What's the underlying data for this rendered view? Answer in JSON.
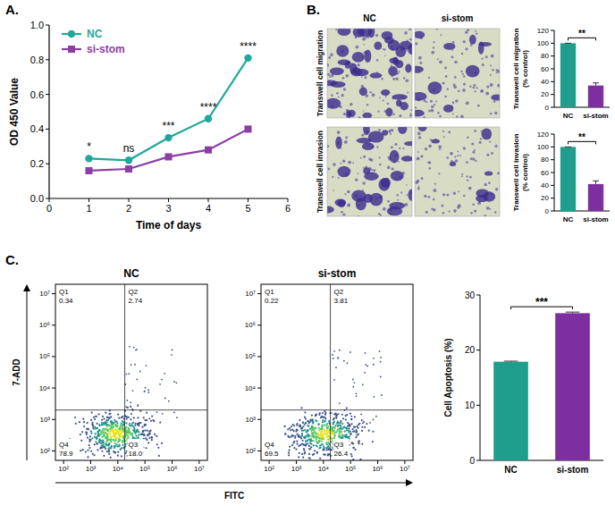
{
  "chart_data": [
    {
      "type": "line",
      "panel": "A.",
      "xlabel": "Time of days",
      "ylabel": "OD 450 Value",
      "x": [
        1,
        2,
        3,
        4,
        5
      ],
      "series": [
        {
          "name": "NC",
          "color": "#1fa899",
          "marker": "circle",
          "values": [
            0.23,
            0.22,
            0.35,
            0.46,
            0.81
          ]
        },
        {
          "name": "si-stom",
          "color": "#8b3fa5",
          "marker": "square",
          "values": [
            0.16,
            0.17,
            0.24,
            0.28,
            0.4
          ]
        }
      ],
      "xlim": [
        0,
        6
      ],
      "xticks": [
        0,
        1,
        2,
        3,
        4,
        5,
        6
      ],
      "ylim": [
        0,
        1
      ],
      "yticks": [
        {
          "value": 0,
          "label": "0.0"
        },
        {
          "value": 0.2,
          "label": "0.2"
        },
        {
          "value": 0.4,
          "label": "0.4"
        },
        {
          "value": 0.6,
          "label": "0.6"
        },
        {
          "value": 0.8,
          "label": "0.8"
        },
        {
          "value": 1,
          "label": "1.0"
        }
      ],
      "legend": "upper left",
      "annotations": [
        {
          "x": 1,
          "text": "*"
        },
        {
          "x": 2,
          "text": "ns"
        },
        {
          "x": 3,
          "text": "***"
        },
        {
          "x": 4,
          "text": "****"
        },
        {
          "x": 5,
          "text": "****"
        }
      ]
    },
    {
      "type": "bar",
      "panel": "B.",
      "images": {
        "columns": [
          "NC",
          "si-stom"
        ],
        "rows": [
          "Transwell cell migration",
          "Transwell cell invasion"
        ]
      },
      "ylabel": "Transwell cell migration (% control)",
      "categories": [
        "NC",
        "si-stom"
      ],
      "values": [
        100,
        34
      ],
      "errors": [
        0,
        4
      ],
      "colors": [
        "#1f9e8e",
        "#7e2f9f"
      ],
      "ylim": [
        0,
        120
      ],
      "yticks": [
        0,
        20,
        40,
        60,
        80,
        100,
        120
      ],
      "annotation": "**"
    },
    {
      "type": "bar",
      "ylabel": "Transwell cell invasion (% control)",
      "categories": [
        "NC",
        "si-stom"
      ],
      "values": [
        100,
        42
      ],
      "errors": [
        0,
        5
      ],
      "colors": [
        "#1f9e8e",
        "#7e2f9f"
      ],
      "ylim": [
        0,
        120
      ],
      "yticks": [
        0,
        20,
        40,
        60,
        80,
        100,
        120
      ],
      "annotation": "**"
    },
    {
      "type": "flow_cytometry",
      "panel": "C.",
      "title": "NC",
      "xlabel": "FITC",
      "ylabel": "7-ADD",
      "log": true,
      "xlim": [
        50,
        20000000
      ],
      "xticks": [
        {
          "value": 100,
          "label": "10²"
        },
        {
          "value": 1000,
          "label": "10³"
        },
        {
          "value": 10000,
          "label": "10⁴"
        },
        {
          "value": 100000,
          "label": "10⁵"
        },
        {
          "value": 1000000,
          "label": "10⁶"
        },
        {
          "value": 10000000,
          "label": "10⁷"
        }
      ],
      "ylim": [
        50,
        20000000
      ],
      "yticks": [
        {
          "value": 100,
          "label": "10²"
        },
        {
          "value": 1000,
          "label": "10³"
        },
        {
          "value": 10000,
          "label": "10⁴"
        },
        {
          "value": 100000,
          "label": "10⁵"
        },
        {
          "value": 1000000,
          "label": "10⁶"
        },
        {
          "value": 10000000,
          "label": "10⁷"
        }
      ],
      "gates": {
        "x": 18000,
        "y": 2000
      },
      "quadrants": {
        "names": [
          "Q1",
          "Q2",
          "Q3",
          "Q4"
        ],
        "values": [
          0.34,
          2.74,
          18,
          78.9
        ],
        "value_labels": [
          "0.34",
          "2.74",
          "18.0",
          "78.9"
        ]
      }
    },
    {
      "type": "flow_cytometry",
      "title": "si-stom",
      "log": true,
      "xlim": [
        50,
        20000000
      ],
      "xticks": [
        {
          "value": 100,
          "label": "10²"
        },
        {
          "value": 1000,
          "label": "10³"
        },
        {
          "value": 10000,
          "label": "10⁴"
        },
        {
          "value": 100000,
          "label": "10⁵"
        },
        {
          "value": 1000000,
          "label": "10⁶"
        },
        {
          "value": 10000000,
          "label": "10⁷"
        }
      ],
      "ylim": [
        50,
        20000000
      ],
      "yticks": [
        {
          "value": 100,
          "label": "10²"
        },
        {
          "value": 1000,
          "label": "10³"
        },
        {
          "value": 10000,
          "label": "10⁴"
        },
        {
          "value": 100000,
          "label": "10⁵"
        },
        {
          "value": 1000000,
          "label": "10⁶"
        },
        {
          "value": 10000000,
          "label": "10⁷"
        }
      ],
      "gates": {
        "x": 18000,
        "y": 2000
      },
      "quadrants": {
        "names": [
          "Q1",
          "Q2",
          "Q3",
          "Q4"
        ],
        "values": [
          0.22,
          3.81,
          26.4,
          69.5
        ],
        "value_labels": [
          "0.22",
          "3.81",
          "26.4",
          "69.5"
        ]
      }
    },
    {
      "type": "bar",
      "ylabel": "Cell Apoptosis (%)",
      "categories": [
        "NC",
        "si-stom"
      ],
      "values": [
        17.9,
        26.7
      ],
      "errors": [
        0.1,
        0.2
      ],
      "colors": [
        "#1f9e8e",
        "#7e2f9f"
      ],
      "ylim": [
        0,
        30
      ],
      "yticks": [
        0,
        10,
        20,
        30
      ],
      "annotation": "***"
    }
  ]
}
